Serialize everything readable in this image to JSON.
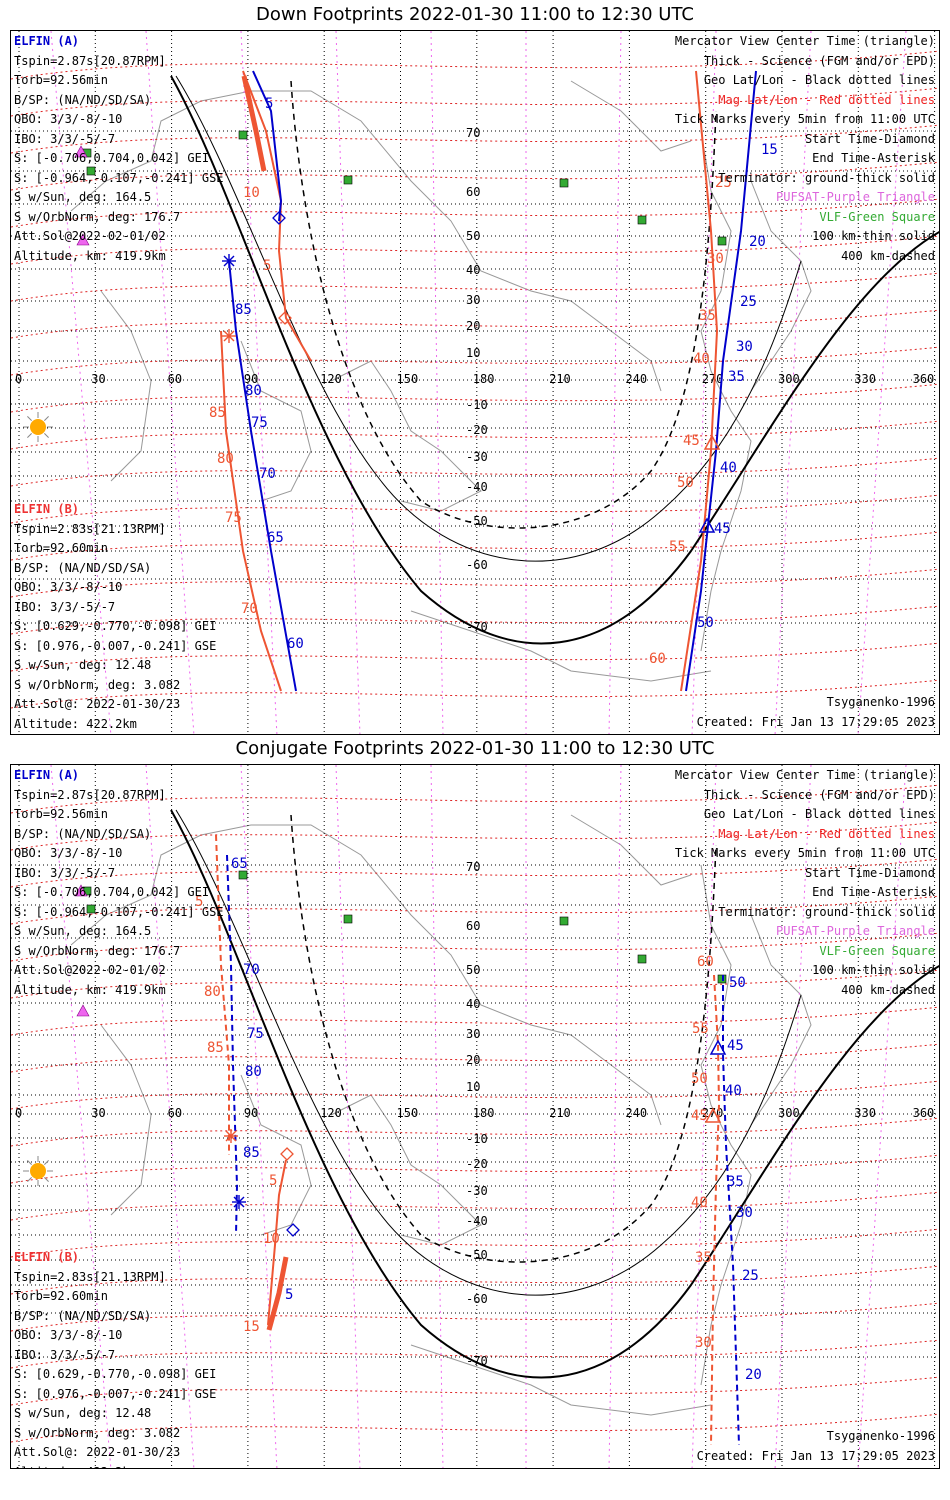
{
  "titles": {
    "down": "Down Footprints 2022-01-30 11:00 to 12:30 UTC",
    "conjugate": "Conjugate Footprints 2022-01-30 11:00 to 12:30 UTC"
  },
  "sat_a": {
    "header": "ELFIN (A)",
    "lines": [
      "Tspin=2.87s[20.87RPM]",
      "Torb=92.56min",
      "B/SP: (NA/ND/SD/SA)",
      "OBO: 3/3/-8/-10",
      "IBO: 3/3/-5/-7",
      "S: [-0.706,0.704,0.042] GEI",
      "S: [-0.964,-0.107,-0.241] GSE",
      "S w/Sun, deg: 164.5",
      "S w/OrbNorm, deg: 176.7",
      "Att.Sol@2022-02-01/02",
      "Altitude, km: 419.9km"
    ]
  },
  "sat_b": {
    "header": "ELFIN (B)",
    "lines": [
      "Tspin=2.83s[21.13RPM]",
      "Torb=92.60min",
      "B/SP: (NA/ND/SD/SA)",
      "OBO: 3/3/-8/-10",
      "IBO: 3/3/-5/-7",
      "S: [0.629,-0.770,-0.098] GEI",
      "S: [0.976,-0.007,-0.241] GSE",
      "S w/Sun, deg: 12.48",
      "S w/OrbNorm, deg: 3.082",
      "Att.Sol@: 2022-01-30/23",
      "Altitude: 422.2km"
    ]
  },
  "legend": {
    "l1": "Mercator View Center Time (triangle)",
    "l2": "Thick - Science (FGM and/or EPD)",
    "l3": "Geo Lat/Lon - Black dotted lines",
    "l4": "Mag Lat/Lon - Red dotted lines",
    "l5": "Tick Marks every 5min from 11:00 UTC",
    "l6": "Start Time-Diamond",
    "l7": "End Time-Asterisk",
    "l8": "Terminator: ground-thick solid",
    "l9": "PUFSAT-Purple Triangle",
    "l10": "VLF-Green Square",
    "l11": "100 km-thin solid",
    "l12": "400 km-dashed"
  },
  "footer": {
    "model": "Tsyganenko-1996",
    "created": "Created: Fri Jan 13 17:29:05 2023"
  },
  "axes": {
    "lon_labels": [
      "0",
      "30",
      "60",
      "90",
      "120",
      "150",
      "180",
      "210",
      "240",
      "270",
      "300",
      "330",
      "360"
    ],
    "lat_labels": [
      "70",
      "60",
      "50",
      "40",
      "30",
      "20",
      "10",
      "-10",
      "-20",
      "-30",
      "-40",
      "-50",
      "-60",
      "-70"
    ]
  },
  "colors": {
    "sat_a": "#0000cc",
    "sat_b": "#ee5533",
    "mag_grid": "#dd2222",
    "geo_grid": "#000000",
    "pufsat": "#ee66ee",
    "vlf": "#33aa33",
    "coast": "#999999",
    "sun": "#ffaa00"
  },
  "track_labels": {
    "down_a": [
      "5",
      "85",
      "80",
      "75",
      "70",
      "65",
      "60",
      "15",
      "20",
      "25",
      "30",
      "35",
      "40",
      "45",
      "50"
    ],
    "down_b": [
      "10",
      "5",
      "85",
      "80",
      "75",
      "70",
      "25",
      "30",
      "35",
      "40",
      "45",
      "50",
      "55",
      "60"
    ],
    "conj_a": [
      "65",
      "70",
      "75",
      "80",
      "85",
      "5",
      "50",
      "45",
      "40",
      "35",
      "30",
      "25",
      "20"
    ],
    "conj_b": [
      "5",
      "80",
      "85",
      "5",
      "10",
      "15",
      "60",
      "55",
      "50",
      "45",
      "40",
      "35",
      "30"
    ]
  },
  "icons": {
    "sun": "sun-icon",
    "pufsat": "purple-triangle-icon",
    "vlf": "green-square-icon",
    "start": "diamond-icon",
    "end": "asterisk-icon",
    "center": "triangle-icon"
  }
}
